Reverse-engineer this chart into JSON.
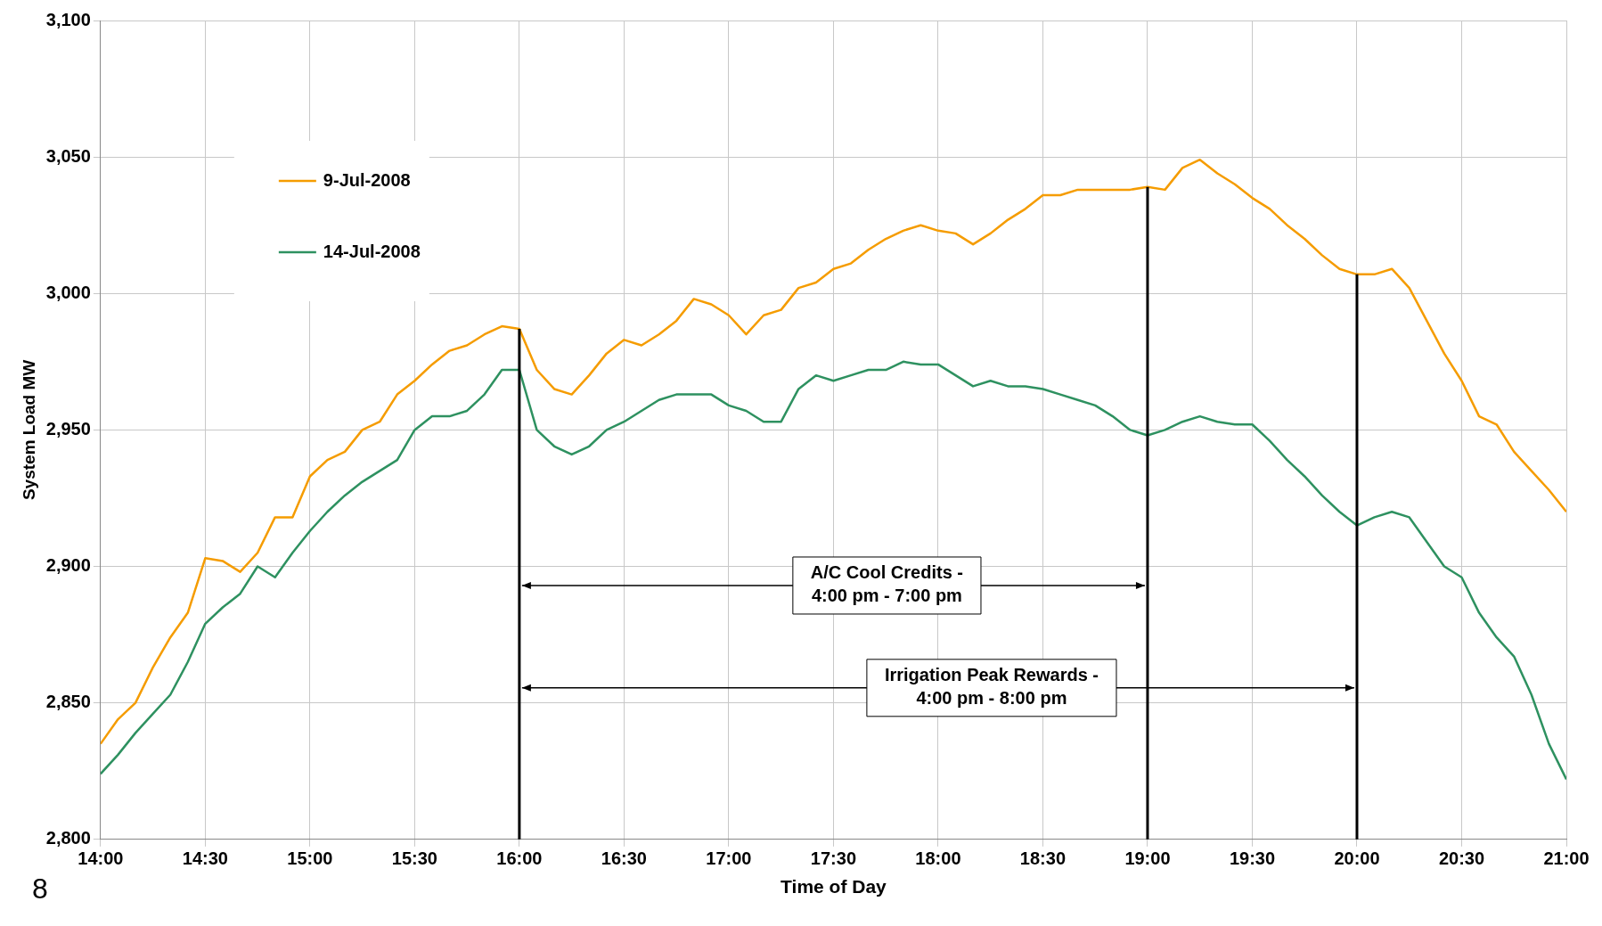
{
  "chart_data": {
    "type": "line",
    "xlabel": "Time of Day",
    "ylabel": "System Load MW",
    "x": [
      14,
      14.0833,
      14.1667,
      14.25,
      14.3333,
      14.4167,
      14.5,
      14.5833,
      14.6667,
      14.75,
      14.8333,
      14.9167,
      15,
      15.0833,
      15.1667,
      15.25,
      15.3333,
      15.4167,
      15.5,
      15.5833,
      15.6667,
      15.75,
      15.8333,
      15.9167,
      16,
      16.0833,
      16.1667,
      16.25,
      16.3333,
      16.4167,
      16.5,
      16.5833,
      16.6667,
      16.75,
      16.8333,
      16.9167,
      17,
      17.0833,
      17.1667,
      17.25,
      17.3333,
      17.4167,
      17.5,
      17.5833,
      17.6667,
      17.75,
      17.8333,
      17.9167,
      18,
      18.0833,
      18.1667,
      18.25,
      18.3333,
      18.4167,
      18.5,
      18.5833,
      18.6667,
      18.75,
      18.8333,
      18.9167,
      19,
      19.0833,
      19.1667,
      19.25,
      19.3333,
      19.4167,
      19.5,
      19.5833,
      19.6667,
      19.75,
      19.8333,
      19.9167,
      20,
      20.0833,
      20.1667,
      20.25,
      20.3333,
      20.4167,
      20.5,
      20.5833,
      20.6667,
      20.75,
      20.8333,
      20.9167,
      21
    ],
    "series": [
      {
        "name": "9-Jul-2008",
        "color": "#f59c00",
        "values": [
          2835,
          2844,
          2850,
          2863,
          2874,
          2883,
          2903,
          2902,
          2898,
          2905,
          2918,
          2918,
          2933,
          2939,
          2942,
          2950,
          2953,
          2963,
          2968,
          2974,
          2979,
          2981,
          2985,
          2988,
          2987,
          2972,
          2965,
          2963,
          2970,
          2978,
          2983,
          2981,
          2985,
          2990,
          2998,
          2996,
          2992,
          2985,
          2992,
          2994,
          3002,
          3004,
          3009,
          3011,
          3016,
          3020,
          3023,
          3025,
          3023,
          3022,
          3018,
          3022,
          3027,
          3031,
          3036,
          3036,
          3038,
          3038,
          3038,
          3038,
          3039,
          3038,
          3046,
          3049,
          3044,
          3040,
          3035,
          3031,
          3025,
          3020,
          3014,
          3009,
          3007,
          3007,
          3009,
          3002,
          2990,
          2978,
          2968,
          2955,
          2952,
          2942,
          2935,
          2928,
          2920
        ]
      },
      {
        "name": "14-Jul-2008",
        "color": "#2e9160",
        "values": [
          2824,
          2831,
          2839,
          2846,
          2853,
          2865,
          2879,
          2885,
          2890,
          2900,
          2896,
          2905,
          2913,
          2920,
          2926,
          2931,
          2935,
          2939,
          2950,
          2955,
          2955,
          2957,
          2963,
          2972,
          2972,
          2950,
          2944,
          2941,
          2944,
          2950,
          2953,
          2957,
          2961,
          2963,
          2963,
          2963,
          2959,
          2957,
          2953,
          2953,
          2965,
          2970,
          2968,
          2970,
          2972,
          2972,
          2975,
          2974,
          2974,
          2970,
          2966,
          2968,
          2966,
          2966,
          2965,
          2963,
          2961,
          2959,
          2955,
          2950,
          2948,
          2950,
          2953,
          2955,
          2953,
          2952,
          2952,
          2946,
          2939,
          2933,
          2926,
          2920,
          2915,
          2918,
          2920,
          2918,
          2909,
          2900,
          2896,
          2883,
          2874,
          2867,
          2853,
          2835,
          2822
        ]
      }
    ],
    "xlim": [
      14,
      21
    ],
    "xticks": [
      {
        "value": 14,
        "label": "14:00"
      },
      {
        "value": 14.5,
        "label": "14:30"
      },
      {
        "value": 15,
        "label": "15:00"
      },
      {
        "value": 15.5,
        "label": "15:30"
      },
      {
        "value": 16,
        "label": "16:00"
      },
      {
        "value": 16.5,
        "label": "16:30"
      },
      {
        "value": 17,
        "label": "17:00"
      },
      {
        "value": 17.5,
        "label": "17:30"
      },
      {
        "value": 18,
        "label": "18:00"
      },
      {
        "value": 18.5,
        "label": "18:30"
      },
      {
        "value": 19,
        "label": "19:00"
      },
      {
        "value": 19.5,
        "label": "19:30"
      },
      {
        "value": 20,
        "label": "20:00"
      },
      {
        "value": 20.5,
        "label": "20:30"
      },
      {
        "value": 21,
        "label": "21:00"
      }
    ],
    "ylim": [
      2800,
      3100
    ],
    "yticks": [
      {
        "value": 2800,
        "label": "2,800"
      },
      {
        "value": 2850,
        "label": "2,850"
      },
      {
        "value": 2900,
        "label": "2,900"
      },
      {
        "value": 2950,
        "label": "2,950"
      },
      {
        "value": 3000,
        "label": "3,000"
      },
      {
        "value": 3050,
        "label": "3,050"
      },
      {
        "value": 3100,
        "label": "3,100"
      }
    ],
    "ref_lines": [
      {
        "axis": "x",
        "value": 16,
        "color": "#000000"
      },
      {
        "axis": "x",
        "value": 19,
        "color": "#000000"
      },
      {
        "axis": "x",
        "value": 20,
        "color": "#000000"
      }
    ],
    "annotations": [
      "A/C Cool Credits -\n4:00 pm - 7:00 pm",
      "Irrigation Peak Rewards -\n4:00 pm - 8:00 pm",
      "8"
    ],
    "grid": true,
    "legend": "top left",
    "marker": "none",
    "line_style": "solid"
  }
}
